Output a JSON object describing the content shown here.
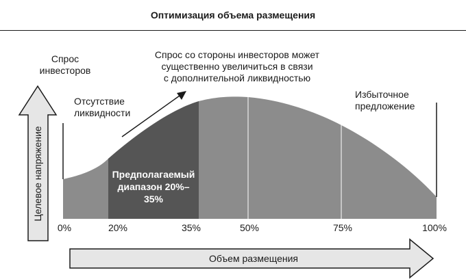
{
  "title": "Оптимизация объема размещения",
  "labels": {
    "investor_demand": [
      "Спрос",
      "инвесторов"
    ],
    "no_liquidity": [
      "Отсутствие",
      "ликвидности"
    ],
    "demand_increase": [
      "Спрос со стороны инвесторов может",
      "существенно увеличиться в связи",
      "с дополнительной ликвидностью"
    ],
    "oversupply": [
      "Избыточное",
      "предложение"
    ],
    "expected_range": [
      "Предполагаемый",
      "диапазон 20%–35%"
    ]
  },
  "y_axis": {
    "label": "Целевое напряжение"
  },
  "x_axis": {
    "label": "Объем размещения",
    "ticks": [
      "0%",
      "20%",
      "35%",
      "50%",
      "75%",
      "100%"
    ]
  },
  "colors": {
    "curve_fill": "#8c8c8c",
    "highlight_fill": "#555555",
    "arrow_fill": "#e6e6e6",
    "divider": "#ffffff"
  }
}
